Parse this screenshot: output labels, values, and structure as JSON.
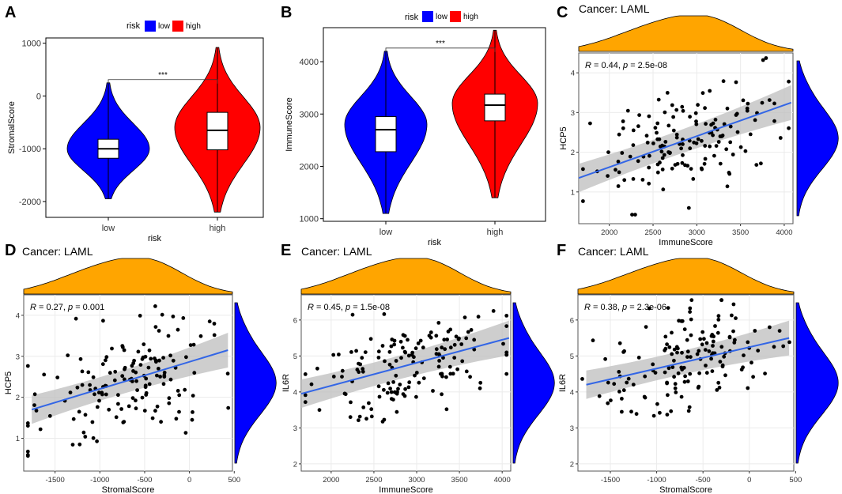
{
  "panel_labels": {
    "A": "A",
    "B": "B",
    "C": "C",
    "D": "D",
    "E": "E",
    "F": "F"
  },
  "legend": {
    "title": "risk",
    "items": [
      {
        "label": "low",
        "color": "#0000ff"
      },
      {
        "label": "high",
        "color": "#ff0000"
      }
    ]
  },
  "colors": {
    "low": "#0000ff",
    "high": "#ff0000",
    "density_top": "#ffa500",
    "density_right": "#0000ff",
    "fit_line": "#3366e6",
    "ci_band": "#bdbdbd",
    "grid": "#ebebeb",
    "points": "#000000"
  },
  "chart_data": [
    {
      "panel": "A",
      "type": "violin",
      "categories": [
        "low",
        "high"
      ],
      "xlabel": "risk",
      "ylabel": "StromalScore",
      "ylim": [
        -2300,
        1100
      ],
      "yticks": [
        -2000,
        -1000,
        0,
        1000
      ],
      "significance": "***",
      "series": [
        {
          "name": "low",
          "min": -1950,
          "max": 250,
          "q1": -1180,
          "median": -1000,
          "q3": -820,
          "peak": -1000
        },
        {
          "name": "high",
          "min": -2200,
          "max": 920,
          "q1": -1020,
          "median": -650,
          "q3": -310,
          "peak": -600
        }
      ]
    },
    {
      "panel": "B",
      "type": "violin",
      "categories": [
        "low",
        "high"
      ],
      "xlabel": "risk",
      "ylabel": "ImmuneScore",
      "ylim": [
        950,
        4650
      ],
      "yticks": [
        1000,
        2000,
        3000,
        4000
      ],
      "significance": "***",
      "series": [
        {
          "name": "low",
          "min": 1100,
          "max": 4200,
          "q1": 2280,
          "median": 2700,
          "q3": 2950,
          "peak": 2800
        },
        {
          "name": "high",
          "min": 1400,
          "max": 4600,
          "q1": 2870,
          "median": 3170,
          "q3": 3380,
          "peak": 3200
        }
      ]
    },
    {
      "panel": "C",
      "type": "scatter",
      "title": "Cancer: LAML",
      "stat": {
        "r_label": "R",
        "r": "0.44",
        "p_label": "p",
        "p": "2.5e-08"
      },
      "xlabel": "ImmuneScore",
      "ylabel": "HCP5",
      "xlim": [
        1650,
        4100
      ],
      "ylim": [
        0.2,
        4.5
      ],
      "xticks": [
        2000,
        2500,
        3000,
        3500,
        4000
      ],
      "yticks": [
        1,
        2,
        3,
        4
      ],
      "fit": {
        "x": [
          1650,
          4080
        ],
        "y": [
          1.35,
          3.25
        ]
      }
    },
    {
      "panel": "D",
      "type": "scatter",
      "title": "Cancer: LAML",
      "stat": {
        "r_label": "R",
        "r": "0.27",
        "p_label": "p",
        "p": "0.001"
      },
      "xlabel": "StromalScore",
      "ylabel": "HCP5",
      "xlim": [
        -1850,
        480
      ],
      "ylim": [
        0.2,
        4.5
      ],
      "xticks": [
        -1500,
        -1000,
        -500,
        0,
        500
      ],
      "yticks": [
        1,
        2,
        3,
        4
      ],
      "fit": {
        "x": [
          -1760,
          430
        ],
        "y": [
          1.7,
          3.15
        ]
      }
    },
    {
      "panel": "E",
      "type": "scatter",
      "title": "Cancer: LAML",
      "stat": {
        "r_label": "R",
        "r": "0.45",
        "p_label": "p",
        "p": "1.5e-08"
      },
      "xlabel": "ImmuneScore",
      "ylabel": "IL6R",
      "xlim": [
        1650,
        4100
      ],
      "ylim": [
        1.8,
        6.7
      ],
      "xticks": [
        2000,
        2500,
        3000,
        3500,
        4000
      ],
      "yticks": [
        2,
        3,
        4,
        5,
        6
      ],
      "fit": {
        "x": [
          1650,
          4080
        ],
        "y": [
          3.95,
          5.5
        ]
      }
    },
    {
      "panel": "F",
      "type": "scatter",
      "title": "Cancer: LAML",
      "stat": {
        "r_label": "R",
        "r": "0.38",
        "p_label": "p",
        "p": "2.3e-06"
      },
      "xlabel": "StromalScore",
      "ylabel": "IL6R",
      "xlim": [
        -1850,
        480
      ],
      "ylim": [
        1.8,
        6.7
      ],
      "xticks": [
        -1500,
        -1000,
        -500,
        0,
        500
      ],
      "yticks": [
        2,
        3,
        4,
        5,
        6
      ],
      "fit": {
        "x": [
          -1760,
          430
        ],
        "y": [
          4.2,
          5.5
        ]
      }
    }
  ]
}
